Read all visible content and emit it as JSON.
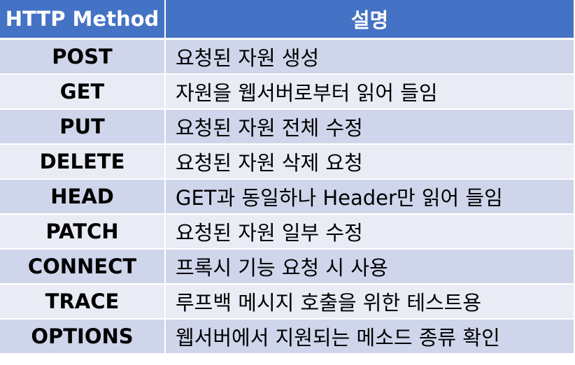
{
  "table": {
    "headers": {
      "method": "HTTP Method",
      "description": "설명"
    },
    "rows": [
      {
        "method": "POST",
        "description": "요청된 자원 생성"
      },
      {
        "method": "GET",
        "description": "자원을 웹서버로부터 읽어 들임"
      },
      {
        "method": "PUT",
        "description": "요청된 자원 전체 수정"
      },
      {
        "method": "DELETE",
        "description": "요청된 자원 삭제 요청"
      },
      {
        "method": "HEAD",
        "description": "GET과 동일하나 Header만 읽어 들임"
      },
      {
        "method": "PATCH",
        "description": "요청된 자원 일부 수정"
      },
      {
        "method": "CONNECT",
        "description": "프록시 기능 요청 시 사용"
      },
      {
        "method": "TRACE",
        "description": "루프백 메시지 호출을 위한 테스트용"
      },
      {
        "method": "OPTIONS",
        "description": "웹서버에서 지원되는 메소드 종류 확인"
      }
    ],
    "colors": {
      "header_bg": "#4472c4",
      "header_text": "#ffffff",
      "row_band_dark": "#cfd5ea",
      "row_band_light": "#e9ebf5"
    }
  }
}
